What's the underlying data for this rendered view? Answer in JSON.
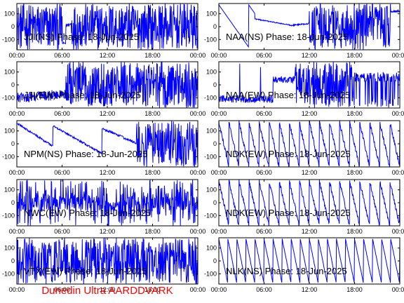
{
  "colors": {
    "trace": "#0000ff",
    "axes": "#000000",
    "footer": "#ff0000",
    "background": "#ffffff"
  },
  "footer": {
    "text": "Dunedin Ultra AARDDVARK"
  },
  "chart_data": [
    {
      "type": "line",
      "title": "JJI(NS) Phase: 18-Jun-2025",
      "pattern": "dense_gap",
      "x": [
        "00:00",
        "06:00",
        "12:00",
        "18:00",
        "00:00"
      ],
      "ylim": [
        -180,
        180
      ],
      "yticks": [
        100,
        0,
        -100
      ]
    },
    {
      "type": "line",
      "title": "NAA(NS) Phase: 18-Jun-2025",
      "pattern": "smooth_then_dense",
      "x": [
        "00:00",
        "06:00",
        "12:00",
        "18:00",
        "00:00"
      ],
      "ylim": [
        -180,
        180
      ],
      "yticks": [
        100,
        0,
        -100
      ]
    },
    {
      "type": "line",
      "title": "JJI(EW) Phase: 18-Jun-2025",
      "pattern": "noisy_then_dense",
      "x": [
        "00:00",
        "06:00",
        "12:00",
        "18:00",
        "00:00"
      ],
      "ylim": [
        -180,
        180
      ],
      "yticks": [
        100,
        0,
        -100
      ]
    },
    {
      "type": "line",
      "title": "NAA(EW) Phase: 18-Jun-2025",
      "pattern": "noisy_band_then_dense",
      "x": [
        "00:00",
        "06:00",
        "12:00",
        "18:00",
        "00:00"
      ],
      "ylim": [
        -180,
        180
      ],
      "yticks": [
        100,
        0,
        -100
      ]
    },
    {
      "type": "line",
      "title": "NPM(NS) Phase: 18-Jun-2025",
      "pattern": "drift_then_noise",
      "x": [
        "00:00",
        "06:00",
        "12:00",
        "18:00",
        "00:00"
      ],
      "ylim": [
        -180,
        180
      ],
      "yticks": [
        100,
        0,
        -100
      ]
    },
    {
      "type": "line",
      "title": "NDK(EW) Phase: 18-Jun-2025",
      "pattern": "sawtooth_dense",
      "x": [
        "00:00",
        "06:00",
        "12:00",
        "18:00",
        "00:00"
      ],
      "ylim": [
        -180,
        180
      ],
      "yticks": [
        100,
        0,
        -100
      ]
    },
    {
      "type": "line",
      "title": "NWC(EW) Phase: 18-Jun-2025",
      "pattern": "bursts",
      "x": [
        "00:00",
        "06:00",
        "12:00",
        "18:00",
        "00:00"
      ],
      "ylim": [
        -180,
        180
      ],
      "yticks": [
        100,
        0,
        -100
      ]
    },
    {
      "type": "line",
      "title": "NDK(EW) Phase: 18-Jun-2025",
      "pattern": "sawtooth_dense",
      "x": [
        "00:00",
        "06:00",
        "12:00",
        "18:00",
        "00:00"
      ],
      "ylim": [
        -180,
        180
      ],
      "yticks": [
        100,
        0,
        -100
      ]
    },
    {
      "type": "line",
      "title": "VTX(EW) Phase: 18-Jun-2025",
      "pattern": "solid",
      "x": [
        "00:00",
        "06:00",
        "12:00",
        "18:00",
        "00:00"
      ],
      "ylim": [
        -180,
        180
      ],
      "yticks": [
        100,
        0,
        -100
      ]
    },
    {
      "type": "line",
      "title": "NLK(NS) Phase: 18-Jun-2025",
      "pattern": "sawtooth_sparse",
      "x": [
        "00:00",
        "06:00",
        "12:00",
        "18:00",
        "00:00"
      ],
      "ylim": [
        -180,
        180
      ],
      "yticks": [
        100,
        0,
        -100
      ]
    }
  ]
}
